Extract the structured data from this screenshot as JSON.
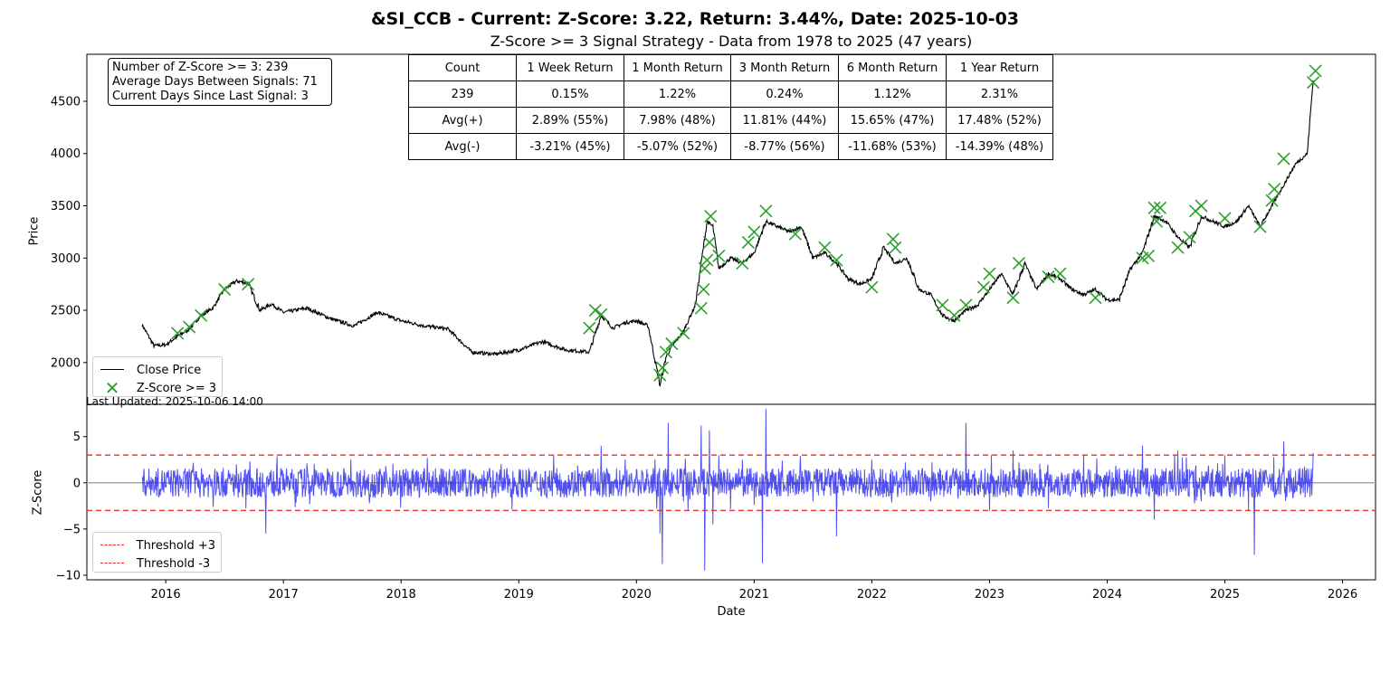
{
  "title": "&SI_CCB - Current: Z-Score: 3.22, Return: 3.44%, Date: 2025-10-03",
  "subtitle": "Z-Score >= 3 Signal Strategy - Data from 1978 to 2025 (47 years)",
  "info_box": {
    "line1": "Number of Z-Score >= 3: 239",
    "line2": "Average Days Between Signals: 71",
    "line3": "Current Days Since Last Signal: 3"
  },
  "stats_table": {
    "header": [
      "Count",
      "1 Week Return",
      "1 Month Return",
      "3 Month Return",
      "6 Month Return",
      "1 Year Return"
    ],
    "rows": [
      [
        "239",
        "0.15%",
        "1.22%",
        "0.24%",
        "1.12%",
        "2.31%"
      ],
      [
        "Avg(+)",
        "2.89% (55%)",
        "7.98% (48%)",
        "11.81% (44%)",
        "15.65% (47%)",
        "17.48% (52%)"
      ],
      [
        "Avg(-)",
        "-3.21% (45%)",
        "-5.07% (52%)",
        "-8.77% (56%)",
        "-11.68% (53%)",
        "-14.39% (48%)"
      ]
    ]
  },
  "last_updated": "Last Updated: 2025-10-06 14:00",
  "chart_data": [
    {
      "type": "line",
      "panel": "price",
      "ylabel": "Price",
      "ylim": [
        1600,
        4950
      ],
      "xlim": [
        2015.33,
        2026.28
      ],
      "yticks": [
        2000,
        2500,
        3000,
        3500,
        4000,
        4500
      ],
      "legend_position": "lower-left",
      "series": [
        {
          "name": "Close Price",
          "color": "#000000",
          "x": [
            2015.8,
            2015.9,
            2016.0,
            2016.1,
            2016.2,
            2016.3,
            2016.4,
            2016.5,
            2016.6,
            2016.7,
            2016.8,
            2016.9,
            2017.0,
            2017.2,
            2017.4,
            2017.6,
            2017.8,
            2018.0,
            2018.2,
            2018.4,
            2018.6,
            2018.8,
            2019.0,
            2019.2,
            2019.4,
            2019.6,
            2019.7,
            2019.8,
            2019.9,
            2020.0,
            2020.1,
            2020.2,
            2020.25,
            2020.3,
            2020.4,
            2020.5,
            2020.55,
            2020.6,
            2020.65,
            2020.7,
            2020.8,
            2020.9,
            2021.0,
            2021.1,
            2021.2,
            2021.3,
            2021.4,
            2021.5,
            2021.6,
            2021.7,
            2021.8,
            2021.9,
            2022.0,
            2022.1,
            2022.2,
            2022.3,
            2022.4,
            2022.5,
            2022.6,
            2022.7,
            2022.8,
            2022.9,
            2023.0,
            2023.1,
            2023.2,
            2023.3,
            2023.4,
            2023.5,
            2023.6,
            2023.7,
            2023.8,
            2023.9,
            2024.0,
            2024.1,
            2024.2,
            2024.3,
            2024.4,
            2024.5,
            2024.6,
            2024.7,
            2024.8,
            2024.9,
            2025.0,
            2025.1,
            2025.2,
            2025.3,
            2025.4,
            2025.5,
            2025.6,
            2025.7,
            2025.75
          ],
          "y": [
            2360,
            2160,
            2170,
            2250,
            2320,
            2450,
            2520,
            2700,
            2780,
            2760,
            2500,
            2560,
            2480,
            2520,
            2420,
            2350,
            2480,
            2400,
            2350,
            2320,
            2100,
            2080,
            2120,
            2200,
            2120,
            2100,
            2450,
            2330,
            2380,
            2400,
            2350,
            1780,
            2050,
            2150,
            2300,
            2550,
            2950,
            3350,
            3300,
            2900,
            3000,
            2950,
            3050,
            3350,
            3300,
            3250,
            3300,
            3000,
            3050,
            2950,
            2800,
            2750,
            2800,
            3100,
            2950,
            3000,
            2700,
            2650,
            2450,
            2400,
            2500,
            2550,
            2700,
            2850,
            2650,
            2950,
            2700,
            2850,
            2800,
            2700,
            2650,
            2700,
            2600,
            2600,
            2900,
            3050,
            3400,
            3350,
            3200,
            3100,
            3400,
            3350,
            3300,
            3350,
            3500,
            3300,
            3500,
            3700,
            3900,
            4000,
            4700
          ]
        },
        {
          "name": "Z-Score >= 3",
          "color": "#2ca02c",
          "marker": "x",
          "x": [
            2016.1,
            2016.2,
            2016.3,
            2016.5,
            2016.7,
            2019.6,
            2019.65,
            2019.7,
            2020.2,
            2020.22,
            2020.25,
            2020.3,
            2020.4,
            2020.55,
            2020.57,
            2020.58,
            2020.6,
            2020.62,
            2020.63,
            2020.7,
            2020.9,
            2020.95,
            2021.0,
            2021.1,
            2021.35,
            2021.6,
            2021.7,
            2022.0,
            2022.18,
            2022.2,
            2022.6,
            2022.7,
            2022.8,
            2022.95,
            2023.0,
            2023.2,
            2023.25,
            2023.5,
            2023.6,
            2023.9,
            2024.3,
            2024.35,
            2024.4,
            2024.42,
            2024.45,
            2024.6,
            2024.7,
            2024.75,
            2024.8,
            2025.0,
            2025.3,
            2025.4,
            2025.42,
            2025.5,
            2025.75,
            2025.77
          ],
          "y": [
            2280,
            2340,
            2450,
            2700,
            2750,
            2330,
            2500,
            2460,
            1880,
            1950,
            2100,
            2180,
            2280,
            2520,
            2700,
            2900,
            2980,
            3150,
            3400,
            3020,
            2950,
            3150,
            3250,
            3450,
            3230,
            3100,
            2980,
            2720,
            3180,
            3100,
            2550,
            2450,
            2550,
            2720,
            2850,
            2620,
            2950,
            2820,
            2850,
            2620,
            3000,
            3020,
            3480,
            3350,
            3480,
            3100,
            3200,
            3450,
            3500,
            3380,
            3300,
            3550,
            3660,
            3950,
            4680,
            4790
          ]
        }
      ]
    },
    {
      "type": "line",
      "panel": "zscore",
      "ylabel": "Z-Score",
      "xlabel": "Date",
      "ylim": [
        -10.5,
        8.5
      ],
      "xlim": [
        2015.33,
        2026.28
      ],
      "yticks": [
        -10,
        -5,
        0,
        5
      ],
      "xticks": [
        2016,
        2017,
        2018,
        2019,
        2020,
        2021,
        2022,
        2023,
        2024,
        2025,
        2026
      ],
      "legend_position": "lower-left",
      "series": [
        {
          "name": "",
          "color": "#3333ee",
          "x": [
            2015.8,
            2016.0,
            2016.2,
            2016.4,
            2016.6,
            2016.8,
            2016.85,
            2017.0,
            2017.5,
            2018.0,
            2018.5,
            2019.0,
            2019.5,
            2019.7,
            2020.0,
            2020.2,
            2020.22,
            2020.27,
            2020.4,
            2020.55,
            2020.58,
            2020.62,
            2020.65,
            2020.7,
            2020.8,
            2020.9,
            2021.0,
            2021.07,
            2021.1,
            2021.5,
            2021.7,
            2022.0,
            2022.2,
            2022.5,
            2022.8,
            2023.0,
            2023.2,
            2023.5,
            2023.8,
            2024.0,
            2024.3,
            2024.4,
            2024.6,
            2024.8,
            2025.0,
            2025.2,
            2025.25,
            2025.5,
            2025.75
          ],
          "y": [
            0.5,
            -0.3,
            1.5,
            -1.0,
            2.0,
            -1.5,
            -5.5,
            1.0,
            -0.5,
            0.8,
            -1.0,
            0.5,
            -0.8,
            4.0,
            1.5,
            -5.5,
            -8.8,
            6.5,
            -2.0,
            6.2,
            -9.5,
            5.7,
            -4.5,
            3.0,
            -2.5,
            2.5,
            -8.0,
            -8.7,
            8.0,
            -2.0,
            -5.8,
            2.5,
            3.8,
            -2.0,
            6.5,
            -3.0,
            3.5,
            -2.0,
            3.0,
            -1.5,
            4.0,
            -4.0,
            3.5,
            -2.0,
            3.0,
            -3.0,
            -7.8,
            4.5,
            3.22
          ]
        },
        {
          "name": "Threshold +3",
          "color": "#e8262a",
          "constant": 3
        },
        {
          "name": "Threshold -3",
          "color": "#e8262a",
          "constant": -3
        }
      ]
    }
  ]
}
